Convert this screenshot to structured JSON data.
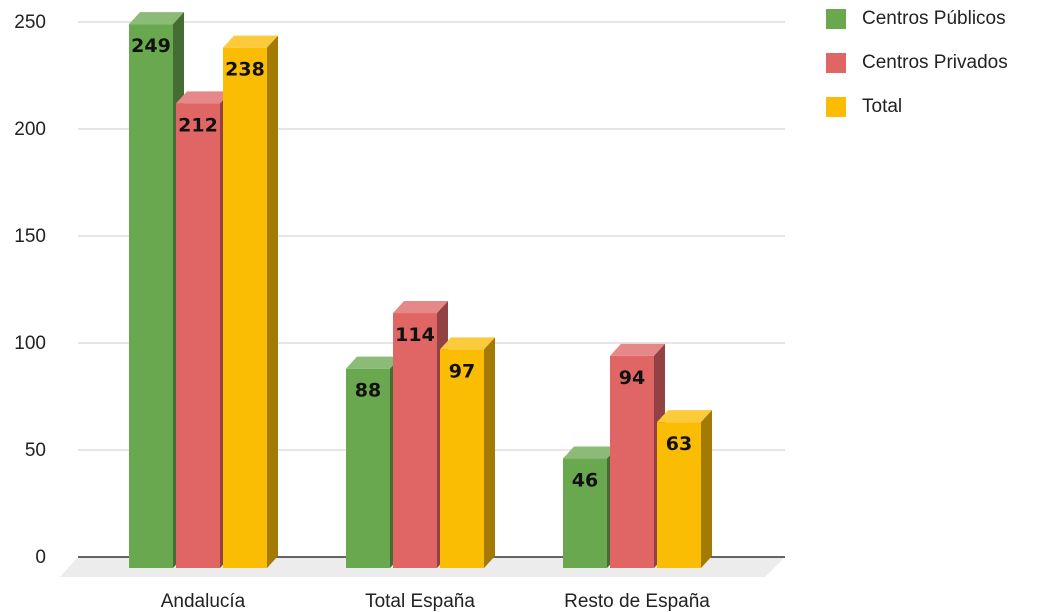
{
  "chart_data": {
    "type": "bar",
    "style": "3d-clustered-column",
    "categories": [
      "Andalucía",
      "Total España",
      "Resto de España"
    ],
    "series": [
      {
        "name": "Centros Públicos",
        "values": [
          249,
          88,
          46
        ],
        "color": "#6aa84f"
      },
      {
        "name": "Centros Privados",
        "values": [
          212,
          114,
          94
        ],
        "color": "#e06666"
      },
      {
        "name": "Total",
        "values": [
          238,
          97,
          63
        ],
        "color": "#fbbc04"
      }
    ],
    "data_labels": [
      [
        "249",
        "88",
        "46"
      ],
      [
        "212",
        "114",
        "94"
      ],
      [
        "238",
        "97",
        "63"
      ]
    ],
    "yticks": [
      0,
      50,
      100,
      150,
      200,
      250
    ],
    "ylim": [
      0,
      250
    ],
    "grid": true,
    "legend_position": "top-right"
  }
}
